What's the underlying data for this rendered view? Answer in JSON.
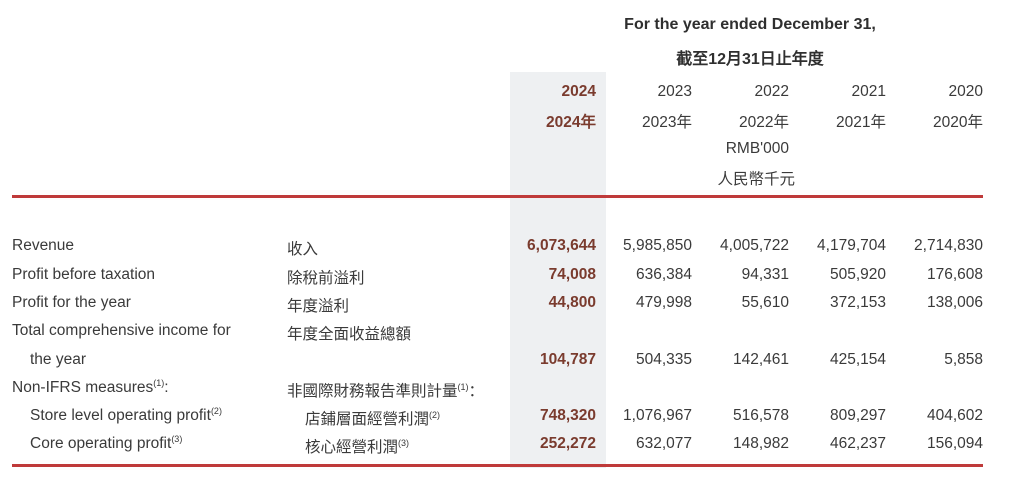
{
  "header": {
    "title_en": "For the year ended December 31,",
    "title_zh": "截至12月31日止年度",
    "unit_en": "RMB'000",
    "unit_zh": "人民幣千元"
  },
  "columns": [
    {
      "year": "2024",
      "year_zh": "2024年"
    },
    {
      "year": "2023",
      "year_zh": "2023年"
    },
    {
      "year": "2022",
      "year_zh": "2022年"
    },
    {
      "year": "2021",
      "year_zh": "2021年"
    },
    {
      "year": "2020",
      "year_zh": "2020年"
    }
  ],
  "rows": [
    {
      "en": "Revenue",
      "zh": "收入",
      "values": [
        "6,073,644",
        "5,985,850",
        "4,005,722",
        "4,179,704",
        "2,714,830"
      ]
    },
    {
      "en": "Profit before taxation",
      "zh": "除稅前溢利",
      "values": [
        "74,008",
        "636,384",
        "94,331",
        "505,920",
        "176,608"
      ]
    },
    {
      "en": "Profit for the year",
      "zh": "年度溢利",
      "values": [
        "44,800",
        "479,998",
        "55,610",
        "372,153",
        "138,006"
      ]
    },
    {
      "en": "Total comprehensive income for",
      "zh": "年度全面收益總額",
      "values": []
    },
    {
      "en": "the year",
      "zh": "",
      "values": [
        "104,787",
        "504,335",
        "142,461",
        "425,154",
        "5,858"
      ]
    },
    {
      "en": "Non-IFRS measures",
      "en_sup": "(1)",
      "en_suffix": ":",
      "zh": "非國際財務報告準則計量",
      "zh_sup": "(1)",
      "zh_suffix": "：",
      "values": []
    },
    {
      "en": "Store level operating profit",
      "en_sup": "(2)",
      "zh": "店鋪層面經營利潤",
      "zh_sup": "(2)",
      "values": [
        "748,320",
        "1,076,967",
        "516,578",
        "809,297",
        "404,602"
      ]
    },
    {
      "en": "Core operating profit",
      "en_sup": "(3)",
      "zh": "核心經營利潤",
      "zh_sup": "(3)",
      "values": [
        "252,272",
        "632,077",
        "148,982",
        "462,237",
        "156,094"
      ]
    }
  ],
  "colors": {
    "accent_rule": "#bf3a3a",
    "current_year_text": "#7a3b2e",
    "highlight_column": "#eef0f2"
  }
}
